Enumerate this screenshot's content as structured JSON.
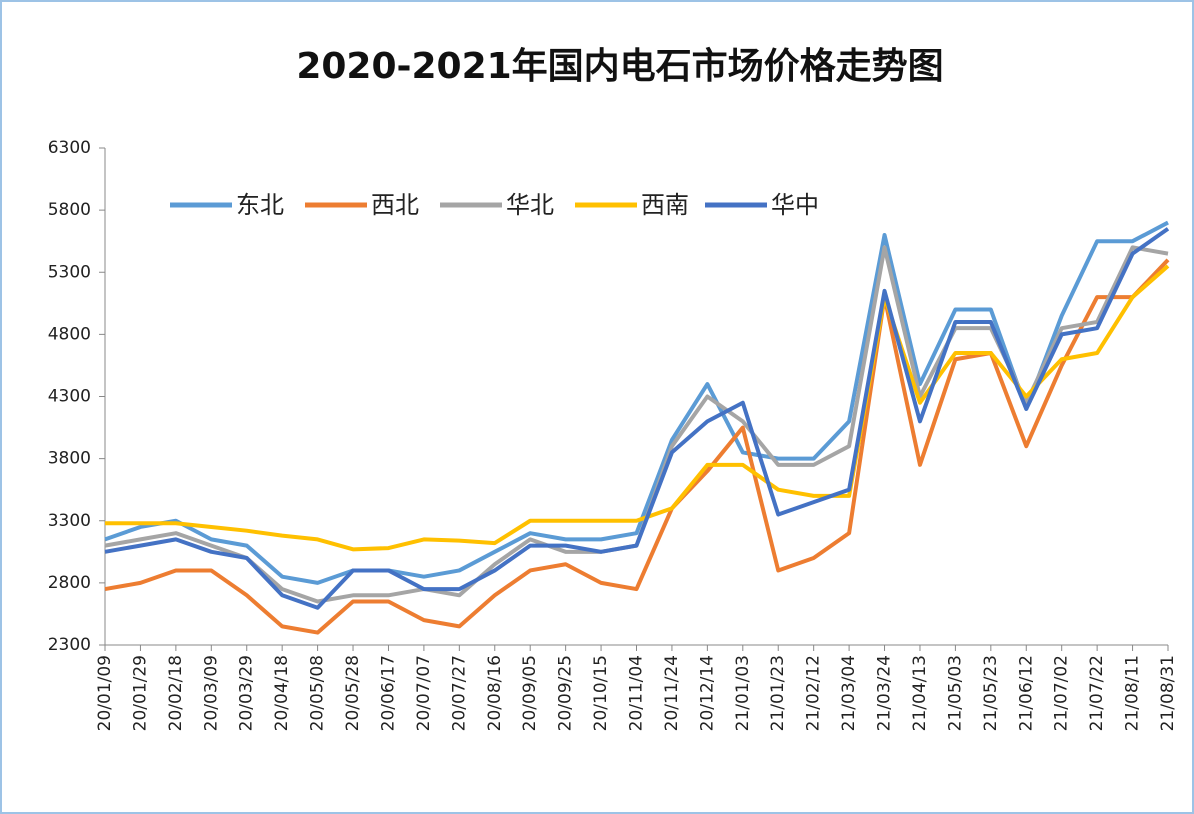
{
  "chart_data": {
    "type": "line",
    "title": "2020-2021年国内电石市场价格走势图",
    "categories": [
      "20/01/09",
      "20/01/29",
      "20/02/18",
      "20/03/09",
      "20/03/29",
      "20/04/18",
      "20/05/08",
      "20/05/28",
      "20/06/17",
      "20/07/07",
      "20/07/27",
      "20/08/16",
      "20/09/05",
      "20/09/25",
      "20/10/15",
      "20/11/04",
      "20/11/24",
      "20/12/14",
      "21/01/03",
      "21/01/23",
      "21/02/12",
      "21/03/04",
      "21/03/24",
      "21/04/13",
      "21/05/03",
      "21/05/23",
      "21/06/12",
      "21/07/02",
      "21/07/22",
      "21/08/11",
      "21/08/31"
    ],
    "series": [
      {
        "name": "东北",
        "color": "#5b9bd5",
        "values": [
          3150,
          3250,
          3300,
          3150,
          3100,
          2850,
          2800,
          2900,
          2900,
          2850,
          2900,
          3050,
          3200,
          3150,
          3150,
          3200,
          3950,
          4400,
          3850,
          3800,
          3800,
          4100,
          5600,
          4400,
          5000,
          5000,
          4200,
          4950,
          5550,
          5550,
          5700
        ]
      },
      {
        "name": "西北",
        "color": "#ed7d31",
        "values": [
          2750,
          2800,
          2900,
          2900,
          2700,
          2450,
          2400,
          2650,
          2650,
          2500,
          2450,
          2700,
          2900,
          2950,
          2800,
          2750,
          3400,
          3700,
          4050,
          2900,
          3000,
          3200,
          5100,
          3750,
          4600,
          4650,
          3900,
          4550,
          5100,
          5100,
          5400
        ]
      },
      {
        "name": "华北",
        "color": "#a5a5a5",
        "values": [
          3100,
          3150,
          3200,
          3100,
          3000,
          2750,
          2650,
          2700,
          2700,
          2750,
          2700,
          2950,
          3150,
          3050,
          3050,
          3100,
          3900,
          4300,
          4100,
          3750,
          3750,
          3900,
          5500,
          4300,
          4850,
          4850,
          4250,
          4850,
          4900,
          5500,
          5450
        ]
      },
      {
        "name": "西南",
        "color": "#ffc000",
        "values": [
          3280,
          3280,
          3280,
          3250,
          3220,
          3180,
          3150,
          3070,
          3080,
          3150,
          3140,
          3120,
          3300,
          3300,
          3300,
          3300,
          3400,
          3750,
          3750,
          3550,
          3500,
          3500,
          5100,
          4250,
          4650,
          4650,
          4300,
          4600,
          4650,
          5100,
          5350
        ]
      },
      {
        "name": "华中",
        "color": "#4472c4",
        "values": [
          3050,
          3100,
          3150,
          3050,
          3000,
          2700,
          2600,
          2900,
          2900,
          2750,
          2750,
          2900,
          3100,
          3100,
          3050,
          3100,
          3850,
          4100,
          4250,
          3350,
          3450,
          3550,
          5150,
          4100,
          4900,
          4900,
          4200,
          4800,
          4850,
          5450,
          5650
        ]
      }
    ],
    "ylim": [
      2300,
      6300
    ],
    "yticks": [
      2300,
      2800,
      3300,
      3800,
      4300,
      4800,
      5300,
      5800,
      6300
    ],
    "legend": "top-left"
  }
}
